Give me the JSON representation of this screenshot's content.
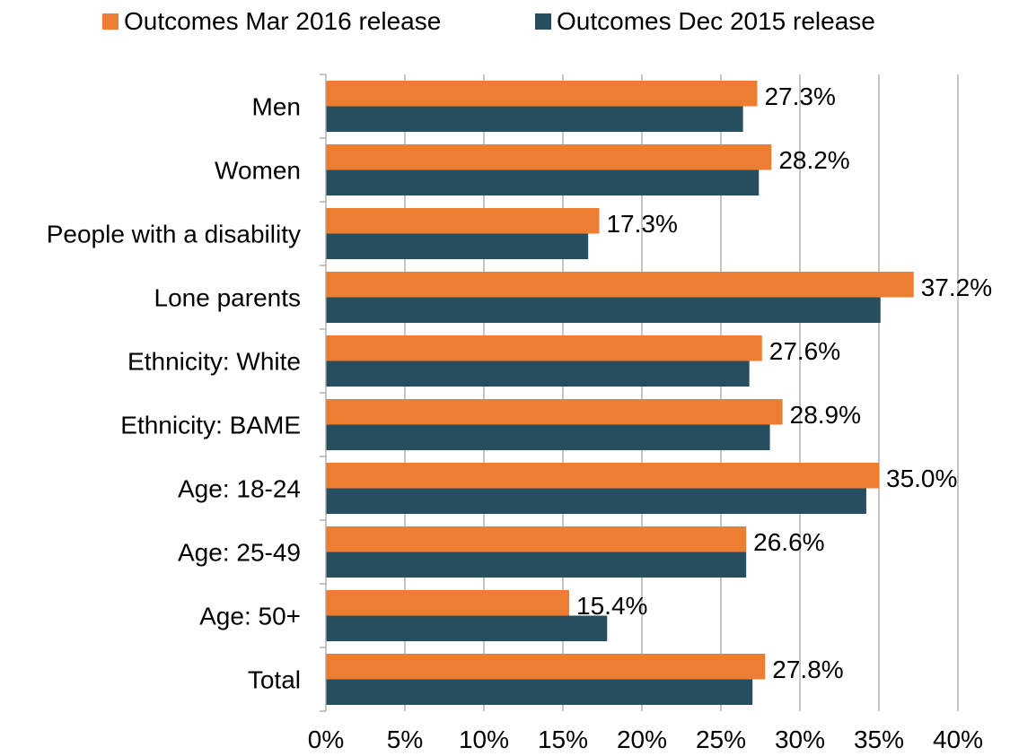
{
  "chart_data": {
    "type": "bar",
    "orientation": "horizontal",
    "title": "",
    "xlabel": "",
    "ylabel": "",
    "xlim": [
      0,
      40
    ],
    "x_ticks": [
      "0%",
      "5%",
      "10%",
      "15%",
      "20%",
      "25%",
      "30%",
      "35%",
      "40%"
    ],
    "x_tick_values": [
      0,
      5,
      10,
      15,
      20,
      25,
      30,
      35,
      40
    ],
    "grid": "vertical",
    "legend_position": "top",
    "categories": [
      "Men",
      "Women",
      "People with a disability",
      "Lone parents",
      "Ethnicity: White",
      "Ethnicity: BAME",
      "Age: 18-24",
      "Age: 25-49",
      "Age: 50+",
      "Total"
    ],
    "series": [
      {
        "name": "Outcomes Mar 2016 release",
        "color": "#ed7d31",
        "values": [
          27.3,
          28.2,
          17.3,
          37.2,
          27.6,
          28.9,
          35.0,
          26.6,
          15.4,
          27.8
        ],
        "data_labels": [
          "27.3%",
          "28.2%",
          "17.3%",
          "37.2%",
          "27.6%",
          "28.9%",
          "35.0%",
          "26.6%",
          "15.4%",
          "27.8%"
        ]
      },
      {
        "name": "Outcomes Dec 2015 release",
        "color": "#264e5e",
        "values": [
          26.4,
          27.4,
          16.6,
          35.1,
          26.8,
          28.1,
          34.2,
          26.6,
          17.8,
          27.0
        ]
      }
    ]
  }
}
